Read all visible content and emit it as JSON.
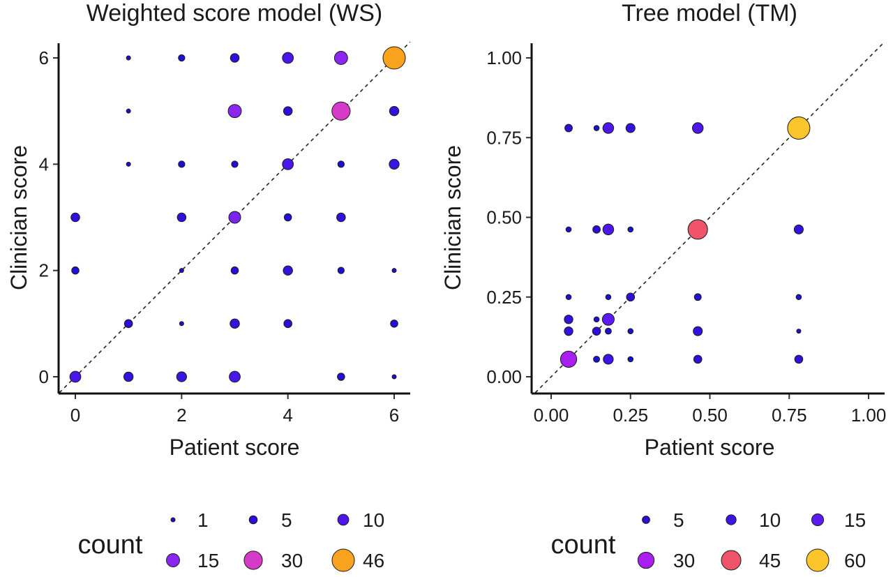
{
  "chart_data": [
    {
      "type": "scatter",
      "title": "Weighted score model (WS)",
      "xlabel": "Patient score",
      "ylabel": "Clinician score",
      "xlim": [
        -0.3,
        6.3
      ],
      "ylim": [
        -0.3,
        6.3
      ],
      "xticks": [
        0,
        2,
        4,
        6
      ],
      "yticks": [
        0,
        2,
        4,
        6
      ],
      "tick_labels_x": [
        "0",
        "2",
        "4",
        "6"
      ],
      "tick_labels_y": [
        "0",
        "2",
        "4",
        "6"
      ],
      "reference_line": "identity (dashed)",
      "grid": false,
      "size_range": [
        1,
        46
      ],
      "legend": {
        "title": "count",
        "position": "bottom",
        "entries": [
          {
            "label": "1",
            "count": 1,
            "color": "#1a0fd4"
          },
          {
            "label": "5",
            "count": 5,
            "color": "#2a0fd8"
          },
          {
            "label": "10",
            "count": 10,
            "color": "#4a16ea"
          },
          {
            "label": "15",
            "count": 15,
            "color": "#8a28f0"
          },
          {
            "label": "30",
            "count": 30,
            "color": "#d63ac8"
          },
          {
            "label": "46",
            "count": 46,
            "color": "#f9a21e"
          }
        ]
      },
      "points": [
        {
          "x": 1,
          "y": 6,
          "count": 1,
          "color": "#1a0fd4"
        },
        {
          "x": 2,
          "y": 6,
          "count": 3,
          "color": "#1f0fd6"
        },
        {
          "x": 3,
          "y": 6,
          "count": 6,
          "color": "#2e10da"
        },
        {
          "x": 4,
          "y": 6,
          "count": 10,
          "color": "#4a16ea"
        },
        {
          "x": 5,
          "y": 6,
          "count": 15,
          "color": "#8a28f0"
        },
        {
          "x": 6,
          "y": 6,
          "count": 46,
          "color": "#f9a21e"
        },
        {
          "x": 1,
          "y": 5,
          "count": 1,
          "color": "#1a0fd4"
        },
        {
          "x": 3,
          "y": 5,
          "count": 15,
          "color": "#8a28f0"
        },
        {
          "x": 4,
          "y": 5,
          "count": 6,
          "color": "#2e10da"
        },
        {
          "x": 5,
          "y": 5,
          "count": 30,
          "color": "#d63ac8"
        },
        {
          "x": 6,
          "y": 5,
          "count": 7,
          "color": "#3412dd"
        },
        {
          "x": 1,
          "y": 4,
          "count": 1,
          "color": "#1a0fd4"
        },
        {
          "x": 2,
          "y": 4,
          "count": 3,
          "color": "#1f0fd6"
        },
        {
          "x": 3,
          "y": 4,
          "count": 3,
          "color": "#1f0fd6"
        },
        {
          "x": 4,
          "y": 4,
          "count": 10,
          "color": "#4a16ea"
        },
        {
          "x": 5,
          "y": 4,
          "count": 3,
          "color": "#1f0fd6"
        },
        {
          "x": 6,
          "y": 4,
          "count": 8,
          "color": "#3a14e2"
        },
        {
          "x": 0,
          "y": 3,
          "count": 6,
          "color": "#2e10da"
        },
        {
          "x": 2,
          "y": 3,
          "count": 6,
          "color": "#2e10da"
        },
        {
          "x": 3,
          "y": 3,
          "count": 12,
          "color": "#7a22ee"
        },
        {
          "x": 4,
          "y": 3,
          "count": 4,
          "color": "#240fd7"
        },
        {
          "x": 5,
          "y": 3,
          "count": 6,
          "color": "#2e10da"
        },
        {
          "x": 0,
          "y": 2,
          "count": 4,
          "color": "#240fd7"
        },
        {
          "x": 2,
          "y": 2,
          "count": 1,
          "color": "#1a0fd4"
        },
        {
          "x": 3,
          "y": 2,
          "count": 4,
          "color": "#240fd7"
        },
        {
          "x": 4,
          "y": 2,
          "count": 7,
          "color": "#3412dd"
        },
        {
          "x": 5,
          "y": 2,
          "count": 3,
          "color": "#1f0fd6"
        },
        {
          "x": 6,
          "y": 2,
          "count": 1,
          "color": "#1a0fd4"
        },
        {
          "x": 1,
          "y": 1,
          "count": 5,
          "color": "#2a0fd8"
        },
        {
          "x": 2,
          "y": 1,
          "count": 1,
          "color": "#1a0fd4"
        },
        {
          "x": 3,
          "y": 1,
          "count": 7,
          "color": "#3412dd"
        },
        {
          "x": 4,
          "y": 1,
          "count": 5,
          "color": "#2a0fd8"
        },
        {
          "x": 6,
          "y": 1,
          "count": 4,
          "color": "#240fd7"
        },
        {
          "x": 0,
          "y": 0,
          "count": 10,
          "color": "#4a16ea"
        },
        {
          "x": 1,
          "y": 0,
          "count": 7,
          "color": "#3412dd"
        },
        {
          "x": 2,
          "y": 0,
          "count": 8,
          "color": "#3a14e2"
        },
        {
          "x": 3,
          "y": 0,
          "count": 10,
          "color": "#4a16ea"
        },
        {
          "x": 5,
          "y": 0,
          "count": 4,
          "color": "#240fd7"
        },
        {
          "x": 6,
          "y": 0,
          "count": 1,
          "color": "#1a0fd4"
        }
      ]
    },
    {
      "type": "scatter",
      "title": "Tree model (TM)",
      "xlabel": "Patient score",
      "ylabel": "Clinician score",
      "xlim": [
        -0.05,
        1.05
      ],
      "ylim": [
        -0.05,
        1.05
      ],
      "xticks": [
        0,
        0.25,
        0.5,
        0.75,
        1
      ],
      "yticks": [
        0,
        0.25,
        0.5,
        0.75,
        1
      ],
      "tick_labels_x": [
        "0.00",
        "0.25",
        "0.50",
        "0.75",
        "1.00"
      ],
      "tick_labels_y": [
        "0.00",
        "0.25",
        "0.50",
        "0.75",
        "1.00"
      ],
      "reference_line": "identity (dashed)",
      "grid": false,
      "size_range": [
        1,
        60
      ],
      "legend": {
        "title": "count",
        "position": "bottom",
        "entries": [
          {
            "label": "5",
            "count": 5,
            "color": "#2a0fd8"
          },
          {
            "label": "10",
            "count": 10,
            "color": "#3c15e6"
          },
          {
            "label": "15",
            "count": 15,
            "color": "#5a1cf0"
          },
          {
            "label": "30",
            "count": 30,
            "color": "#a91ff0"
          },
          {
            "label": "45",
            "count": 45,
            "color": "#f0546a"
          },
          {
            "label": "60",
            "count": 60,
            "color": "#fcc52a"
          }
        ]
      },
      "points": [
        {
          "x": 0.055,
          "y": 0.78,
          "count": 5,
          "color": "#2a0fd8"
        },
        {
          "x": 0.143,
          "y": 0.78,
          "count": 2,
          "color": "#1c0fd4"
        },
        {
          "x": 0.18,
          "y": 0.78,
          "count": 12,
          "color": "#4a18eb"
        },
        {
          "x": 0.25,
          "y": 0.78,
          "count": 8,
          "color": "#3412dd"
        },
        {
          "x": 0.462,
          "y": 0.78,
          "count": 12,
          "color": "#4a18eb"
        },
        {
          "x": 0.78,
          "y": 0.78,
          "count": 60,
          "color": "#fcc52a"
        },
        {
          "x": 0.055,
          "y": 0.462,
          "count": 2,
          "color": "#1c0fd4"
        },
        {
          "x": 0.143,
          "y": 0.462,
          "count": 5,
          "color": "#2a0fd8"
        },
        {
          "x": 0.18,
          "y": 0.462,
          "count": 12,
          "color": "#4a18eb"
        },
        {
          "x": 0.25,
          "y": 0.462,
          "count": 2,
          "color": "#1c0fd4"
        },
        {
          "x": 0.462,
          "y": 0.462,
          "count": 45,
          "color": "#f0546a"
        },
        {
          "x": 0.78,
          "y": 0.462,
          "count": 8,
          "color": "#3412dd"
        },
        {
          "x": 0.055,
          "y": 0.25,
          "count": 2,
          "color": "#1c0fd4"
        },
        {
          "x": 0.18,
          "y": 0.25,
          "count": 2,
          "color": "#1c0fd4"
        },
        {
          "x": 0.25,
          "y": 0.25,
          "count": 6,
          "color": "#2e10da"
        },
        {
          "x": 0.462,
          "y": 0.25,
          "count": 4,
          "color": "#240fd7"
        },
        {
          "x": 0.78,
          "y": 0.25,
          "count": 2,
          "color": "#1c0fd4"
        },
        {
          "x": 0.055,
          "y": 0.18,
          "count": 7,
          "color": "#3412dd"
        },
        {
          "x": 0.143,
          "y": 0.18,
          "count": 2,
          "color": "#1c0fd4"
        },
        {
          "x": 0.18,
          "y": 0.18,
          "count": 15,
          "color": "#5a1cf0"
        },
        {
          "x": 0.055,
          "y": 0.143,
          "count": 7,
          "color": "#3412dd"
        },
        {
          "x": 0.143,
          "y": 0.143,
          "count": 6,
          "color": "#2e10da"
        },
        {
          "x": 0.18,
          "y": 0.143,
          "count": 3,
          "color": "#1f0fd6"
        },
        {
          "x": 0.25,
          "y": 0.143,
          "count": 2,
          "color": "#1c0fd4"
        },
        {
          "x": 0.462,
          "y": 0.143,
          "count": 8,
          "color": "#3412dd"
        },
        {
          "x": 0.78,
          "y": 0.143,
          "count": 1,
          "color": "#1a0fd4"
        },
        {
          "x": 0.055,
          "y": 0.055,
          "count": 30,
          "color": "#a91ff0"
        },
        {
          "x": 0.143,
          "y": 0.055,
          "count": 3,
          "color": "#1f0fd6"
        },
        {
          "x": 0.18,
          "y": 0.055,
          "count": 10,
          "color": "#3c15e6"
        },
        {
          "x": 0.25,
          "y": 0.055,
          "count": 2,
          "color": "#1c0fd4"
        },
        {
          "x": 0.462,
          "y": 0.055,
          "count": 6,
          "color": "#2e10da"
        },
        {
          "x": 0.78,
          "y": 0.055,
          "count": 6,
          "color": "#2e10da"
        }
      ]
    }
  ]
}
